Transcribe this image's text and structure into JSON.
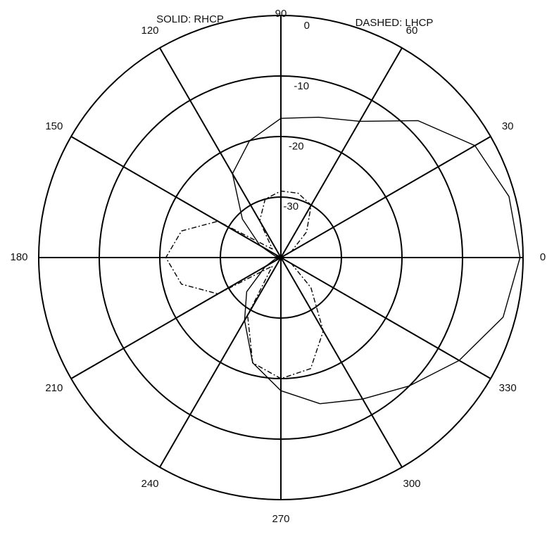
{
  "chart_data": {
    "type": "polar",
    "legend_labels": [
      "SOLID: RHCP",
      "DASHED: LHCP"
    ],
    "theta": [
      0,
      15,
      30,
      45,
      60,
      75,
      90,
      105,
      120,
      135,
      150,
      165,
      180,
      195,
      210,
      225,
      240,
      255,
      270,
      285,
      300,
      315,
      330,
      345
    ],
    "series": [
      {
        "name": "SOLID: RHCP",
        "color": "#000000",
        "dash": "solid",
        "values": [
          -0.5,
          -1,
          -3,
          -8,
          -14,
          -16,
          -17,
          -20,
          -24,
          -31,
          -36,
          -39,
          -40,
          -39,
          -37,
          -32,
          -28,
          -22,
          -18,
          -15,
          -13,
          -10,
          -6,
          -2
        ]
      },
      {
        "name": "DASHED: LHCP",
        "color": "#000000",
        "dash": "dashdot",
        "values": [
          -40,
          -40,
          -38,
          -34,
          -30,
          -29,
          -29,
          -30,
          -33,
          -38,
          -28,
          -23,
          -21,
          -23,
          -28,
          -38,
          -29,
          -22,
          -20,
          -21,
          -26,
          -33,
          -38,
          -40
        ]
      }
    ],
    "rlim": [
      -40,
      0
    ],
    "rticks": [
      -30,
      -20,
      -10,
      0
    ],
    "thetaticks": [
      0,
      30,
      60,
      90,
      120,
      150,
      180,
      210,
      240,
      270,
      300,
      330
    ]
  }
}
